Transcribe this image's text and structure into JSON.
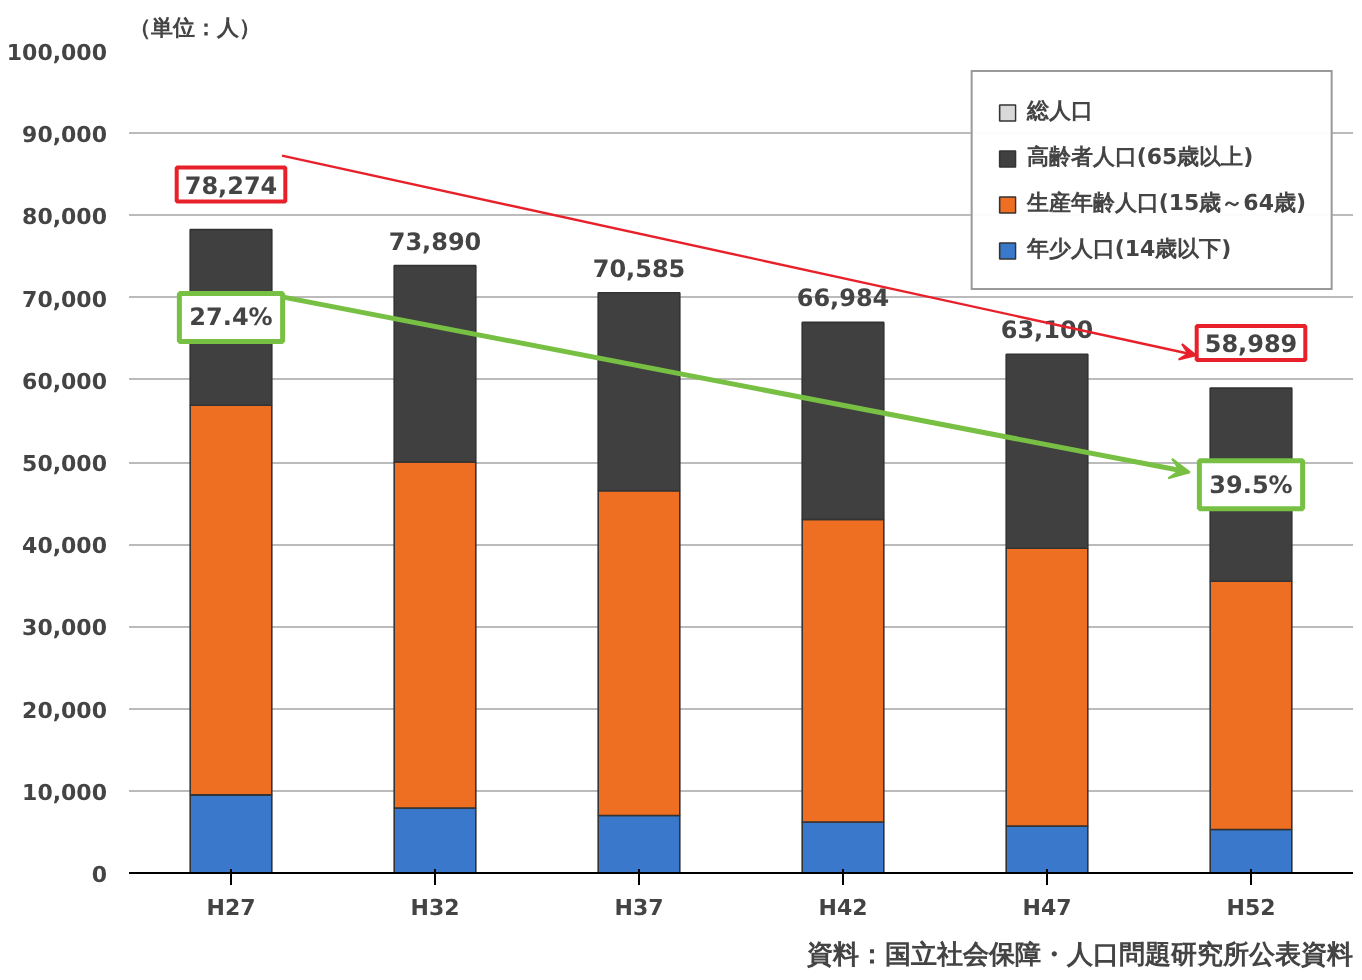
{
  "chart_data": {
    "type": "bar",
    "stacked": true,
    "ylabel": "（単位：人）",
    "categories": [
      "H27",
      "H32",
      "H37",
      "H42",
      "H47",
      "H52"
    ],
    "series": [
      {
        "name": "年少人口(14歳以下)",
        "color": "#3a78cc",
        "values": [
          9500,
          7900,
          7000,
          6200,
          5700,
          5300
        ]
      },
      {
        "name": "生産年齢人口(15歳～64歳)",
        "color": "#ee6e22",
        "values": [
          47400,
          42100,
          39500,
          36800,
          33800,
          30200
        ]
      },
      {
        "name": "高齢者人口(65歳以上)",
        "color": "#404040",
        "values": [
          21374,
          23890,
          24085,
          23984,
          23600,
          23489
        ]
      },
      {
        "name": "総人口",
        "color": "#d9d9d9",
        "values": [
          null,
          null,
          null,
          null,
          null,
          null
        ]
      }
    ],
    "totals": [
      "78,274",
      "73,890",
      "70,585",
      "66,984",
      "63,100",
      "58,989"
    ],
    "ylim": [
      0,
      100000
    ],
    "yticks": [
      {
        "value": 0,
        "label": "0"
      },
      {
        "value": 10000,
        "label": "10,000"
      },
      {
        "value": 20000,
        "label": "20,000"
      },
      {
        "value": 30000,
        "label": "30,000"
      },
      {
        "value": 40000,
        "label": "40,000"
      },
      {
        "value": 50000,
        "label": "50,000"
      },
      {
        "value": 60000,
        "label": "60,000"
      },
      {
        "value": 70000,
        "label": "70,000"
      },
      {
        "value": 80000,
        "label": "80,000"
      },
      {
        "value": 90000,
        "label": "90,000"
      },
      {
        "value": 100000,
        "label": "100,000"
      }
    ],
    "grid": "y",
    "legend": "top right",
    "annotations": [
      "27.4%",
      "39.5%",
      "資料：国立社会保障・人口問題研究所公表資料"
    ]
  }
}
